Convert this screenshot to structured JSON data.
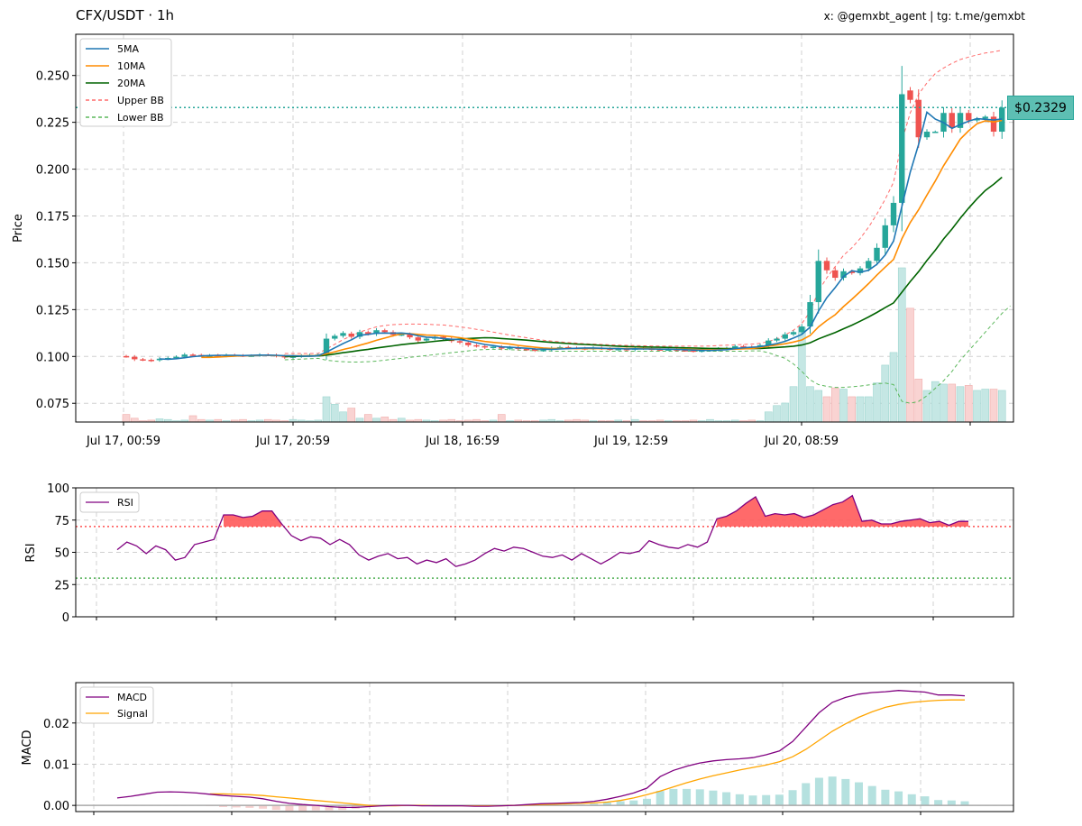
{
  "header": {
    "title": "CFX/USDT · 1h",
    "credit": "x: @gemxbt_agent | tg: t.me/gemxbt"
  },
  "price_tag": "$0.2329",
  "colors": {
    "up": "#26a69a",
    "down": "#ef5350",
    "ma5": "#1f77b4",
    "ma10": "#ff8c00",
    "ma20": "#006400",
    "upper_bb": "#ff6b6b",
    "lower_bb": "#5cb85c",
    "rsi": "#800080",
    "rsi_fill": "#ff5a5a",
    "macd": "#800080",
    "signal": "#ffa500",
    "hist": "#a8dcd9"
  },
  "chart_data": [
    {
      "type": "candlestick",
      "ylabel": "Price",
      "ylim": [
        0.065,
        0.272
      ],
      "yticks": [
        0.075,
        0.1,
        0.125,
        0.15,
        0.175,
        0.2,
        0.225,
        0.25
      ],
      "ytick_labels": [
        "0.075",
        "0.100",
        "0.125",
        "0.150",
        "0.175",
        "0.200",
        "0.225",
        "0.250"
      ],
      "xtick_labels": [
        "Jul 17, 00:59",
        "Jul 17, 20:59",
        "Jul 18, 16:59",
        "Jul 19, 12:59",
        "Jul 20, 08:59"
      ],
      "legend": [
        "5MA",
        "10MA",
        "20MA",
        "Upper BB",
        "Lower BB"
      ],
      "legend_position": "top-left",
      "last_price": 0.2329,
      "grid": true,
      "close": [
        0.1,
        0.0985,
        0.0982,
        0.0978,
        0.0988,
        0.0992,
        0.0998,
        0.101,
        0.1008,
        0.1005,
        0.1006,
        0.1003,
        0.1008,
        0.1006,
        0.1004,
        0.1005,
        0.101,
        0.1008,
        0.1002,
        0.0995,
        0.1,
        0.1005,
        0.1008,
        0.101,
        0.1095,
        0.111,
        0.1125,
        0.1105,
        0.113,
        0.112,
        0.114,
        0.113,
        0.1115,
        0.1118,
        0.1102,
        0.1085,
        0.1095,
        0.1105,
        0.1094,
        0.1082,
        0.1074,
        0.106,
        0.1055,
        0.1048,
        0.1052,
        0.1042,
        0.1048,
        0.104,
        0.1038,
        0.1032,
        0.1035,
        0.1045,
        0.105,
        0.1046,
        0.1044,
        0.104,
        0.1046,
        0.1042,
        0.1038,
        0.104,
        0.1036,
        0.1045,
        0.1042,
        0.1038,
        0.1036,
        0.1038,
        0.1034,
        0.1032,
        0.1028,
        0.1032,
        0.1035,
        0.1042,
        0.1045,
        0.1055,
        0.1052,
        0.1048,
        0.106,
        0.1085,
        0.1095,
        0.1118,
        0.113,
        0.116,
        0.129,
        0.151,
        0.146,
        0.142,
        0.1455,
        0.1445,
        0.147,
        0.151,
        0.158,
        0.17,
        0.182,
        0.24,
        0.237,
        0.217,
        0.22,
        0.22,
        0.23,
        0.222,
        0.23,
        0.226,
        0.227,
        0.228,
        0.22,
        0.2329
      ],
      "open": [
        0.1002,
        0.0998,
        0.0985,
        0.0982,
        0.098,
        0.0988,
        0.0992,
        0.0998,
        0.101,
        0.1008,
        0.1003,
        0.1007,
        0.1003,
        0.1008,
        0.1006,
        0.1004,
        0.1005,
        0.101,
        0.1008,
        0.1002,
        0.0995,
        0.1,
        0.1005,
        0.1008,
        0.101,
        0.1095,
        0.111,
        0.1122,
        0.1105,
        0.113,
        0.112,
        0.114,
        0.113,
        0.1115,
        0.1118,
        0.1102,
        0.1085,
        0.1095,
        0.1105,
        0.1094,
        0.1082,
        0.1074,
        0.106,
        0.1055,
        0.1048,
        0.1052,
        0.1042,
        0.1048,
        0.104,
        0.1038,
        0.1032,
        0.1035,
        0.1045,
        0.105,
        0.1046,
        0.1044,
        0.104,
        0.1046,
        0.1042,
        0.1038,
        0.104,
        0.1036,
        0.1045,
        0.1042,
        0.1038,
        0.1036,
        0.1038,
        0.1034,
        0.1032,
        0.1028,
        0.1032,
        0.1035,
        0.1042,
        0.1045,
        0.1055,
        0.1052,
        0.1048,
        0.106,
        0.1085,
        0.1095,
        0.1118,
        0.113,
        0.116,
        0.129,
        0.151,
        0.146,
        0.142,
        0.1455,
        0.1445,
        0.147,
        0.151,
        0.158,
        0.17,
        0.182,
        0.242,
        0.237,
        0.217,
        0.22,
        0.22,
        0.23,
        0.222,
        0.23,
        0.226,
        0.227,
        0.228,
        0.22
      ],
      "volume": [
        0.012,
        0.006,
        0.002,
        0.003,
        0.005,
        0.004,
        0.002,
        0.003,
        0.01,
        0.004,
        0.003,
        0.004,
        0.002,
        0.003,
        0.004,
        0.002,
        0.003,
        0.004,
        0.003,
        0.002,
        0.004,
        0.003,
        0.002,
        0.003,
        0.04,
        0.028,
        0.016,
        0.022,
        0.006,
        0.012,
        0.006,
        0.008,
        0.004,
        0.006,
        0.003,
        0.004,
        0.003,
        0.002,
        0.003,
        0.004,
        0.002,
        0.003,
        0.004,
        0.002,
        0.003,
        0.012,
        0.002,
        0.003,
        0.002,
        0.002,
        0.003,
        0.004,
        0.002,
        0.003,
        0.004,
        0.003,
        0.002,
        0.002,
        0.002,
        0.003,
        0.002,
        0.004,
        0.002,
        0.002,
        0.003,
        0.002,
        0.002,
        0.002,
        0.003,
        0.002,
        0.004,
        0.002,
        0.002,
        0.003,
        0.002,
        0.003,
        0.002,
        0.016,
        0.026,
        0.03,
        0.056,
        0.15,
        0.056,
        0.05,
        0.04,
        0.054,
        0.052,
        0.04,
        0.04,
        0.04,
        0.062,
        0.09,
        0.11,
        0.244,
        0.18,
        0.068,
        0.05,
        0.064,
        0.06,
        0.06,
        0.056,
        0.058,
        0.05,
        0.052,
        0.052,
        0.05
      ],
      "ma5": [
        null,
        null,
        null,
        null,
        0.0987,
        0.0985,
        0.0988,
        0.0993,
        0.0999,
        0.1003,
        0.1005,
        0.1006,
        0.1006,
        0.1006,
        0.1005,
        0.1006,
        0.1007,
        0.1007,
        0.1006,
        0.1004,
        0.1004,
        0.1002,
        0.1002,
        0.1004,
        0.1023,
        0.1046,
        0.1069,
        0.1089,
        0.1113,
        0.1118,
        0.1124,
        0.1125,
        0.1124,
        0.1125,
        0.1121,
        0.111,
        0.1103,
        0.1101,
        0.1096,
        0.1092,
        0.109,
        0.1083,
        0.1073,
        0.1064,
        0.1058,
        0.1051,
        0.1049,
        0.1046,
        0.1044,
        0.104,
        0.1039,
        0.1038,
        0.104,
        0.1042,
        0.1044,
        0.1045,
        0.1045,
        0.1044,
        0.1042,
        0.1042,
        0.104,
        0.1041,
        0.104,
        0.104,
        0.1039,
        0.1039,
        0.1038,
        0.1036,
        0.1034,
        0.1033,
        0.1032,
        0.1034,
        0.1036,
        0.1042,
        0.1046,
        0.1049,
        0.1052,
        0.106,
        0.1069,
        0.1081,
        0.1098,
        0.1118,
        0.1157,
        0.1242,
        0.1314,
        0.1368,
        0.1427,
        0.1458,
        0.145,
        0.146,
        0.1492,
        0.1542,
        0.1616,
        0.1802,
        0.1984,
        0.2132,
        0.2304,
        0.2267,
        0.2248,
        0.2218,
        0.2238,
        0.2256,
        0.227,
        0.2266,
        0.2262,
        0.2268
      ],
      "ma10": [
        null,
        null,
        null,
        null,
        null,
        null,
        null,
        null,
        null,
        0.0995,
        0.0995,
        0.0997,
        0.0999,
        0.1002,
        0.1004,
        0.1005,
        0.1006,
        0.1006,
        0.1005,
        0.1004,
        0.1004,
        0.1004,
        0.1004,
        0.1005,
        0.1014,
        0.1025,
        0.1037,
        0.1047,
        0.106,
        0.1072,
        0.1086,
        0.1098,
        0.111,
        0.1121,
        0.1122,
        0.1118,
        0.1114,
        0.1113,
        0.111,
        0.1106,
        0.11,
        0.1093,
        0.1087,
        0.108,
        0.1075,
        0.1071,
        0.1066,
        0.1059,
        0.1054,
        0.1049,
        0.1045,
        0.1043,
        0.1043,
        0.1043,
        0.1042,
        0.1042,
        0.1043,
        0.1042,
        0.1042,
        0.1042,
        0.1042,
        0.1042,
        0.1042,
        0.1041,
        0.104,
        0.1039,
        0.1039,
        0.1038,
        0.1037,
        0.1036,
        0.1036,
        0.1036,
        0.1037,
        0.1039,
        0.1041,
        0.1043,
        0.1047,
        0.1055,
        0.1061,
        0.1068,
        0.1077,
        0.1088,
        0.1112,
        0.1158,
        0.1192,
        0.1223,
        0.1266,
        0.1305,
        0.1346,
        0.1389,
        0.1434,
        0.1477,
        0.1518,
        0.1629,
        0.1715,
        0.1783,
        0.1861,
        0.1937,
        0.2018,
        0.2089,
        0.216,
        0.2205,
        0.2242,
        0.2258,
        0.2252,
        0.226
      ],
      "ma20": [
        null,
        null,
        null,
        null,
        null,
        null,
        null,
        null,
        null,
        null,
        null,
        null,
        null,
        null,
        null,
        null,
        null,
        null,
        null,
        0.0999,
        0.1,
        0.1001,
        0.1002,
        0.1003,
        0.1007,
        0.1013,
        0.102,
        0.1026,
        0.1032,
        0.1038,
        0.1045,
        0.1051,
        0.1057,
        0.1063,
        0.1068,
        0.1072,
        0.1076,
        0.1081,
        0.1085,
        0.1089,
        0.1093,
        0.1096,
        0.1098,
        0.11,
        0.1099,
        0.1096,
        0.1093,
        0.109,
        0.1087,
        0.1083,
        0.1079,
        0.1075,
        0.1072,
        0.1069,
        0.1066,
        0.1064,
        0.1062,
        0.1059,
        0.1057,
        0.1055,
        0.1053,
        0.1052,
        0.1051,
        0.105,
        0.1049,
        0.1048,
        0.1047,
        0.1046,
        0.1045,
        0.1044,
        0.1043,
        0.1043,
        0.1042,
        0.1042,
        0.1042,
        0.1042,
        0.1043,
        0.1045,
        0.1048,
        0.1051,
        0.1055,
        0.1061,
        0.1073,
        0.1094,
        0.1111,
        0.1128,
        0.1148,
        0.1167,
        0.1188,
        0.1211,
        0.1235,
        0.1261,
        0.1286,
        0.1343,
        0.14,
        0.1453,
        0.1512,
        0.1567,
        0.1627,
        0.168,
        0.1738,
        0.1792,
        0.1841,
        0.1886,
        0.1919,
        0.1957
      ],
      "upper_bb": [
        null,
        null,
        null,
        null,
        null,
        null,
        null,
        null,
        null,
        null,
        null,
        null,
        null,
        null,
        null,
        null,
        null,
        null,
        null,
        0.1016,
        0.1016,
        0.1016,
        0.1016,
        0.1016,
        0.104,
        0.1065,
        0.109,
        0.111,
        0.113,
        0.1145,
        0.1158,
        0.1165,
        0.117,
        0.1172,
        0.1173,
        0.1173,
        0.1172,
        0.117,
        0.1168,
        0.1163,
        0.1158,
        0.1152,
        0.1145,
        0.1138,
        0.113,
        0.1122,
        0.1114,
        0.1107,
        0.11,
        0.1093,
        0.1087,
        0.1082,
        0.1078,
        0.1074,
        0.1071,
        0.1068,
        0.1066,
        0.1064,
        0.1062,
        0.106,
        0.1059,
        0.1058,
        0.1057,
        0.1056,
        0.1055,
        0.1055,
        0.1055,
        0.1055,
        0.1055,
        0.1055,
        0.1056,
        0.1058,
        0.106,
        0.1062,
        0.1064,
        0.1066,
        0.107,
        0.108,
        0.1095,
        0.1115,
        0.114,
        0.1175,
        0.124,
        0.135,
        0.142,
        0.148,
        0.154,
        0.158,
        0.163,
        0.169,
        0.176,
        0.184,
        0.193,
        0.215,
        0.23,
        0.24,
        0.246,
        0.251,
        0.254,
        0.2565,
        0.2585,
        0.2598,
        0.261,
        0.262,
        0.2626,
        0.2635
      ],
      "lower_bb": [
        null,
        null,
        null,
        null,
        null,
        null,
        null,
        null,
        null,
        null,
        null,
        null,
        null,
        null,
        null,
        null,
        null,
        null,
        null,
        0.0982,
        0.0984,
        0.0986,
        0.0988,
        0.099,
        0.098,
        0.0975,
        0.0972,
        0.097,
        0.097,
        0.0972,
        0.0975,
        0.098,
        0.0985,
        0.099,
        0.0995,
        0.1,
        0.1005,
        0.101,
        0.1015,
        0.102,
        0.1025,
        0.103,
        0.1035,
        0.1037,
        0.1038,
        0.1038,
        0.1036,
        0.1034,
        0.1032,
        0.1031,
        0.103,
        0.1029,
        0.1028,
        0.1028,
        0.1028,
        0.1028,
        0.1028,
        0.1028,
        0.1028,
        0.1028,
        0.1028,
        0.1028,
        0.1028,
        0.1028,
        0.1028,
        0.1028,
        0.1028,
        0.1028,
        0.1028,
        0.1028,
        0.1028,
        0.1028,
        0.1028,
        0.1028,
        0.1028,
        0.103,
        0.103,
        0.102,
        0.1005,
        0.099,
        0.096,
        0.092,
        0.0875,
        0.085,
        0.084,
        0.0835,
        0.0835,
        0.0838,
        0.0842,
        0.0848,
        0.0854,
        0.0858,
        0.085,
        0.076,
        0.075,
        0.076,
        0.079,
        0.083,
        0.087,
        0.092,
        0.098,
        0.103,
        0.108,
        0.113,
        0.118,
        0.123,
        0.127
      ]
    },
    {
      "type": "line",
      "ylabel": "RSI",
      "ylim": [
        0,
        100
      ],
      "yticks": [
        0,
        25,
        50,
        75,
        100
      ],
      "ytick_labels": [
        "0",
        "25",
        "50",
        "75",
        "100"
      ],
      "legend": [
        "RSI"
      ],
      "legend_position": "top-left",
      "overbought": 70,
      "oversold": 30,
      "grid": true,
      "rsi": [
        52,
        58,
        55,
        49,
        55,
        52,
        44,
        46,
        56,
        58,
        60,
        79,
        79,
        77,
        78,
        82,
        82,
        72,
        63,
        59,
        62,
        61,
        56,
        60,
        56,
        48,
        44,
        47,
        49,
        45,
        46,
        41,
        44,
        42,
        45,
        39,
        41,
        44,
        49,
        53,
        51,
        54,
        53,
        50,
        47,
        46,
        48,
        44,
        49,
        45,
        41,
        45,
        50,
        49,
        51,
        59,
        56,
        54,
        53,
        56,
        54,
        58,
        76,
        78,
        82,
        88,
        93,
        78,
        80,
        79,
        80,
        77,
        79,
        83,
        87,
        89,
        94,
        74,
        75,
        72,
        72,
        74,
        75,
        76,
        73,
        74,
        71,
        74,
        74
      ]
    },
    {
      "type": "line",
      "ylabel": "MACD",
      "ylim": [
        -0.0015,
        0.0298
      ],
      "yticks": [
        0.0,
        0.01,
        0.02
      ],
      "ytick_labels": [
        "0.00",
        "0.01",
        "0.02"
      ],
      "legend": [
        "MACD",
        "Signal"
      ],
      "legend_position": "top-left",
      "grid": true,
      "macd": [
        0.0018,
        0.0022,
        0.0027,
        0.0032,
        0.0033,
        0.0032,
        0.003,
        0.0027,
        0.0024,
        0.0022,
        0.002,
        0.0016,
        0.001,
        0.0005,
        0.0002,
        0.0,
        -0.0003,
        -0.0005,
        -0.0005,
        -0.0003,
        -0.0001,
        0.0,
        0.0,
        -0.0001,
        -0.0001,
        -0.0001,
        -0.0001,
        -0.0002,
        -0.0002,
        -0.0001,
        0.0,
        0.0002,
        0.0004,
        0.0005,
        0.0006,
        0.0007,
        0.001,
        0.0015,
        0.0022,
        0.003,
        0.0042,
        0.007,
        0.0085,
        0.0095,
        0.0103,
        0.0108,
        0.0111,
        0.0113,
        0.0116,
        0.0123,
        0.0132,
        0.0155,
        0.019,
        0.0225,
        0.025,
        0.0262,
        0.027,
        0.0274,
        0.0276,
        0.0279,
        0.0277,
        0.0275,
        0.0268,
        0.0268,
        0.0266
      ],
      "signal": [
        null,
        null,
        null,
        null,
        null,
        null,
        null,
        0.0028,
        0.0028,
        0.0027,
        0.0026,
        0.0024,
        0.0021,
        0.0018,
        0.0015,
        0.0012,
        0.0009,
        0.0006,
        0.0003,
        0.0,
        -0.0001,
        -0.0001,
        0.0,
        0.0,
        -0.0001,
        -0.0001,
        -0.0001,
        -0.0001,
        -0.0001,
        -0.0001,
        0.0,
        0.0001,
        0.0002,
        0.0003,
        0.0004,
        0.0005,
        0.0006,
        0.0008,
        0.0012,
        0.0018,
        0.0026,
        0.0035,
        0.0045,
        0.0055,
        0.0064,
        0.0072,
        0.0079,
        0.0086,
        0.0092,
        0.0098,
        0.0106,
        0.0118,
        0.0136,
        0.0158,
        0.018,
        0.0198,
        0.0214,
        0.0227,
        0.0238,
        0.0245,
        0.025,
        0.0253,
        0.0255,
        0.0256,
        0.0256
      ],
      "histogram": [
        null,
        null,
        null,
        null,
        null,
        null,
        null,
        -0.0001,
        -0.0004,
        -0.0005,
        -0.0006,
        -0.0008,
        -0.0011,
        -0.0013,
        -0.0013,
        -0.0012,
        -0.0012,
        -0.0011,
        -0.0008,
        -0.0003,
        0.0,
        0.0001,
        0.0,
        -0.0001,
        0.0,
        0.0,
        0.0,
        -0.0001,
        -0.0001,
        0.0,
        0.0,
        0.0001,
        0.0002,
        0.0002,
        0.0002,
        0.0002,
        0.0004,
        0.0007,
        0.001,
        0.0012,
        0.0016,
        0.0035,
        0.004,
        0.004,
        0.0039,
        0.0036,
        0.0032,
        0.0027,
        0.0024,
        0.0025,
        0.0026,
        0.0037,
        0.0054,
        0.0067,
        0.007,
        0.0064,
        0.0056,
        0.0047,
        0.0038,
        0.0034,
        0.0027,
        0.0022,
        0.0013,
        0.0012,
        0.001
      ]
    }
  ]
}
